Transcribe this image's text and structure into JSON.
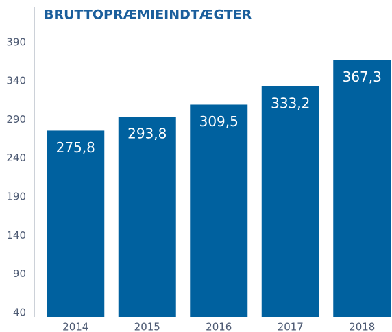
{
  "chart_data": {
    "type": "bar",
    "title": "BRUTTOPRÆMIEINDTÆGTER",
    "categories": [
      "2014",
      "2015",
      "2016",
      "2017",
      "2018"
    ],
    "values": [
      275.8,
      293.8,
      309.5,
      333.2,
      367.3
    ],
    "value_labels": [
      "275,8",
      "293,8",
      "309,5",
      "333,2",
      "367,3"
    ],
    "color": "#00619f",
    "ylim": [
      40,
      436
    ],
    "yticks": [
      40,
      90,
      140,
      190,
      240,
      290,
      340,
      390
    ],
    "grid": false
  }
}
